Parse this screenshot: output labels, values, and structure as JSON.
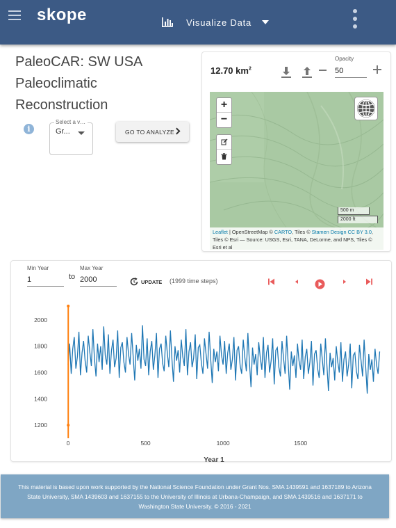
{
  "appbar": {
    "logo": "skope",
    "menu_icon": "hamburger-menu-icon",
    "viz_icon": "bar-chart-icon",
    "viz_label": "Visualize Data",
    "more_icon": "more-vertical-icon",
    "color": "#3c5a85"
  },
  "dataset": {
    "title_lines": [
      "PaleoCAR: SW USA",
      "Paleoclimatic",
      "Reconstruction"
    ],
    "info_icon": "info-icon",
    "variable_select": {
      "legend": "Select a variable",
      "value": "Gr..."
    },
    "analyze_button": "GO TO ANALYZE"
  },
  "map_panel": {
    "area_value": "12.70 km",
    "area_unit_exp": "2",
    "opacity_label": "Opacity",
    "opacity_value": "50",
    "zoom_in": "+",
    "zoom_out": "−",
    "scale_metric": "500 m",
    "scale_imperial": "2000 ft",
    "attribution": {
      "leaflet": "Leaflet",
      "osm": " | OpenStreetMap © ",
      "carto": "CARTO",
      "tiles1": ", Tiles © ",
      "stamen": "Stamen Design",
      "cc": "CC BY 3.0",
      "rest": ", Tiles © Esri — Source: USGS, Esri, TANA, DeLorme, and NPS, Tiles © Esri et al"
    }
  },
  "timeseries": {
    "min_year_label": "Min Year",
    "min_year_value": "1",
    "to_label": "to",
    "max_year_label": "Max Year",
    "max_year_value": "2000",
    "update_label": "UPDATE",
    "steps_text": "(1999 time steps)",
    "line_color": "#1f77b4",
    "cursor_color": "#ff7f0e"
  },
  "chart_data": {
    "type": "line",
    "title": "",
    "xlabel": "Year 1",
    "ylabel": "",
    "xlim": [
      0,
      1999
    ],
    "ylim": [
      1100,
      2100
    ],
    "x_ticks": [
      0,
      500,
      1000,
      1500
    ],
    "y_ticks": [
      1200,
      1400,
      1600,
      1800,
      2000
    ],
    "cursor_year": 1,
    "series": [
      {
        "x_start": 0,
        "x_step": 10,
        "values": [
          1660,
          1820,
          1590,
          1780,
          1870,
          1630,
          1720,
          1910,
          1580,
          1750,
          1840,
          1690,
          1600,
          1880,
          1760,
          1650,
          1930,
          1710,
          1570,
          1820,
          1680,
          1800,
          1620,
          1950,
          1730,
          1660,
          1890,
          1590,
          1770,
          1850,
          1640,
          1710,
          1920,
          1560,
          1790,
          1830,
          1680,
          1600,
          1870,
          1740,
          1660,
          1900,
          1720,
          1540,
          1810,
          1690,
          1780,
          1630,
          1960,
          1700,
          1650,
          1860,
          1580,
          1760,
          1840,
          1620,
          1730,
          1900,
          1560,
          1780,
          1820,
          1670,
          1610,
          1880,
          1750,
          1640,
          1920,
          1700,
          1530,
          1800,
          1690,
          1770,
          1600,
          1850,
          1720,
          1650,
          1930,
          1580,
          1760,
          1830,
          1640,
          1710,
          1890,
          1550,
          1790,
          1810,
          1670,
          1590,
          1860,
          1740,
          1630,
          1910,
          1700,
          1520,
          1780,
          1680,
          1760,
          1610,
          1880,
          1730,
          1660,
          1840,
          1590,
          1750,
          1820,
          1620,
          1700,
          1870,
          1540,
          1770,
          1800,
          1650,
          1590,
          1850,
          1720,
          1610,
          1900,
          1680,
          1490,
          1790,
          1660,
          1740,
          1580,
          1830,
          1710,
          1620,
          1870,
          1560,
          1750,
          1810,
          1600,
          1690,
          1860,
          1510,
          1770,
          1790,
          1640,
          1570,
          1840,
          1710,
          1590,
          1880,
          1670,
          1470,
          1760,
          1650,
          1730,
          1560,
          1820,
          1690,
          1620,
          1850,
          1550,
          1720,
          1780,
          1590,
          1680,
          1840,
          1500,
          1740,
          1770,
          1630,
          1560,
          1820,
          1700,
          1580,
          1860,
          1650,
          1460,
          1750,
          1640,
          1710,
          1540,
          1800,
          1680,
          1600,
          1830,
          1530,
          1700,
          1760,
          1570,
          1660,
          1820,
          1480,
          1730,
          1750,
          1610,
          1550,
          1810,
          1690,
          1570,
          1850,
          1640,
          1440,
          1740,
          1620,
          1700,
          1530,
          1780,
          1660,
          1590,
          1760
        ]
      }
    ]
  },
  "footer": {
    "text": "This material is based upon work supported by the National Science Foundation under Grant Nos. SMA 1439591 and 1637189 to Arizona State University, SMA 1439603 and 1637155 to the University of Illinois at Urbana-Champaign, and SMA 1439516 and 1637171 to Washington State University. © 2016 - 2021"
  }
}
